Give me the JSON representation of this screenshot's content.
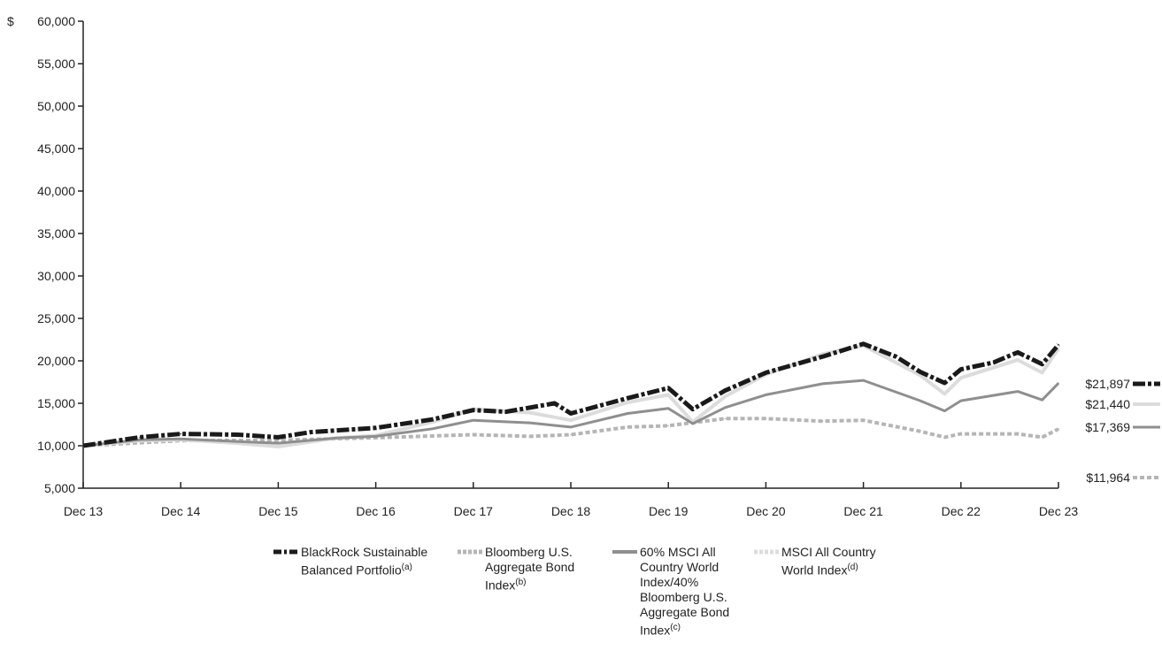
{
  "chart_data": {
    "type": "line",
    "y_prefix": "$",
    "ylim": [
      5000,
      60000
    ],
    "y_ticks": [
      "60,000",
      "55,000",
      "50,000",
      "45,000",
      "40,000",
      "35,000",
      "30,000",
      "25,000",
      "20,000",
      "15,000",
      "10,000",
      "5,000"
    ],
    "y_tick_values": [
      60000,
      55000,
      50000,
      45000,
      40000,
      35000,
      30000,
      25000,
      20000,
      15000,
      10000,
      5000
    ],
    "x_ticks": [
      "Dec 13",
      "Dec 14",
      "Dec 15",
      "Dec 16",
      "Dec 17",
      "Dec 18",
      "Dec 19",
      "Dec 20",
      "Dec 21",
      "Dec 22",
      "Dec 23"
    ],
    "x_range": [
      2013.917,
      2023.917
    ],
    "grid": false,
    "legend_position": "bottom",
    "series": [
      {
        "name": "BlackRock Sustainable Balanced Portfolio",
        "footnote": "(a)",
        "color": "#1a1a1a",
        "end_label": "$21,897",
        "x": [
          2013.917,
          2014.5,
          2014.917,
          2015.5,
          2015.917,
          2016.25,
          2016.917,
          2017.5,
          2017.917,
          2018.25,
          2018.75,
          2018.917,
          2019.5,
          2019.917,
          2020.167,
          2020.5,
          2020.917,
          2021.5,
          2021.917,
          2022.25,
          2022.5,
          2022.75,
          2022.917,
          2023.25,
          2023.5,
          2023.75,
          2023.917
        ],
        "y": [
          10000,
          11000,
          11400,
          11300,
          11000,
          11600,
          12100,
          13100,
          14200,
          14000,
          15000,
          13800,
          15600,
          16800,
          14300,
          16500,
          18600,
          20500,
          22000,
          20500,
          18700,
          17400,
          19000,
          19800,
          21000,
          19600,
          21897
        ]
      },
      {
        "name": "Bloomberg U.S. Aggregate Bond Index",
        "footnote": "(b)",
        "color": "#b5b5b5",
        "end_label": "$11,964",
        "x": [
          2013.917,
          2014.917,
          2015.917,
          2016.917,
          2017.917,
          2018.5,
          2018.917,
          2019.5,
          2019.917,
          2020.5,
          2020.917,
          2021.5,
          2021.917,
          2022.5,
          2022.75,
          2022.917,
          2023.5,
          2023.75,
          2023.917
        ],
        "y": [
          10000,
          10600,
          10650,
          10950,
          11300,
          11100,
          11300,
          12200,
          12350,
          13200,
          13200,
          12900,
          13000,
          11700,
          11000,
          11400,
          11400,
          11000,
          11964
        ]
      },
      {
        "name": "60% MSCI All Country World Index/40% Bloomberg U.S. Aggregate Bond Index",
        "footnote": "(c)",
        "color": "#8f8f8f",
        "end_label": "$17,369",
        "x": [
          2013.917,
          2014.5,
          2014.917,
          2015.5,
          2015.917,
          2016.5,
          2016.917,
          2017.5,
          2017.917,
          2018.5,
          2018.917,
          2019.5,
          2019.917,
          2020.167,
          2020.5,
          2020.917,
          2021.5,
          2021.917,
          2022.5,
          2022.75,
          2022.917,
          2023.5,
          2023.75,
          2023.917
        ],
        "y": [
          10000,
          10700,
          10800,
          10500,
          10300,
          10900,
          11100,
          12000,
          13000,
          12700,
          12200,
          13800,
          14400,
          12600,
          14500,
          16000,
          17300,
          17700,
          15300,
          14100,
          15300,
          16400,
          15400,
          17369
        ]
      },
      {
        "name": "MSCI All Country World Index",
        "footnote": "(d)",
        "color": "#dcdcdc",
        "end_label": "$21,440",
        "x": [
          2013.917,
          2014.5,
          2014.917,
          2015.5,
          2015.917,
          2016.5,
          2016.917,
          2017.5,
          2017.917,
          2018.5,
          2018.917,
          2019.5,
          2019.917,
          2020.167,
          2020.5,
          2020.917,
          2021.5,
          2021.917,
          2022.5,
          2022.75,
          2022.917,
          2023.5,
          2023.75,
          2023.917
        ],
        "y": [
          10000,
          10600,
          10700,
          10300,
          9900,
          10900,
          11200,
          12800,
          14300,
          13900,
          13000,
          15100,
          16000,
          12800,
          15800,
          18400,
          20800,
          21800,
          18300,
          16100,
          18000,
          20100,
          18600,
          21440
        ]
      }
    ]
  }
}
